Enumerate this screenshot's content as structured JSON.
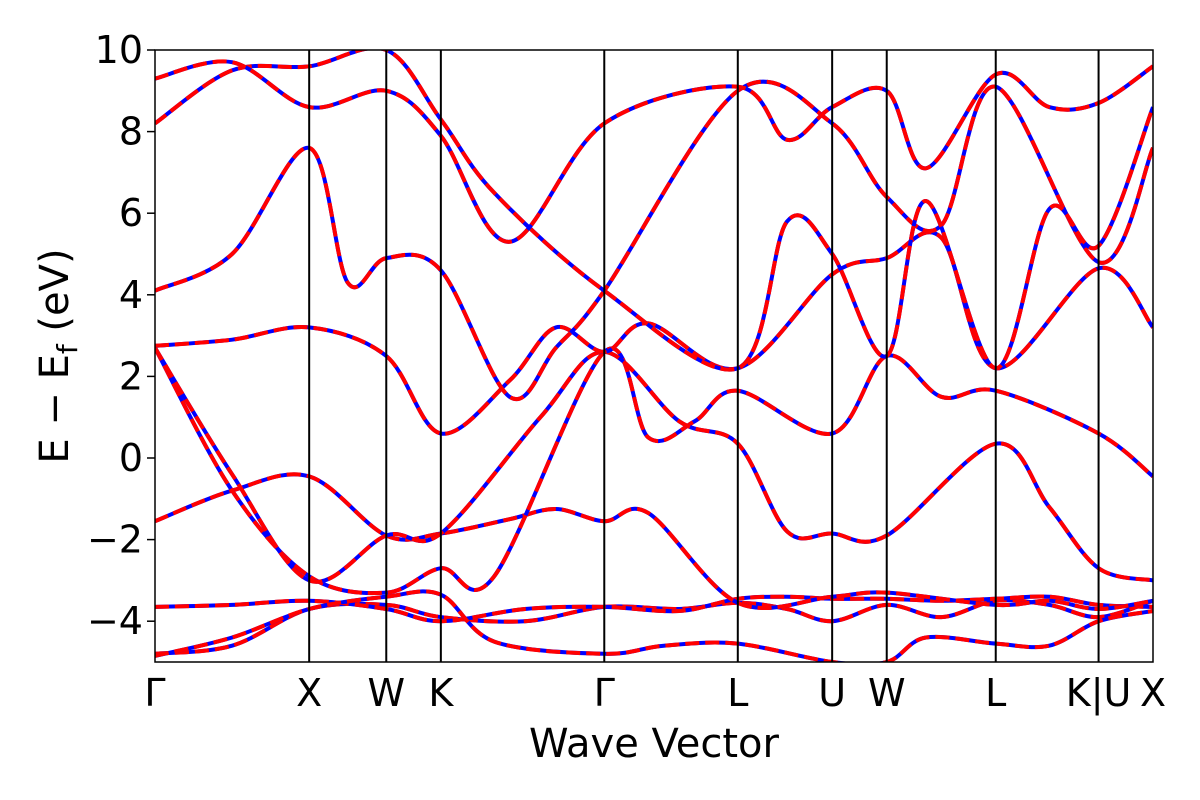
{
  "chart_data": {
    "type": "line",
    "title": "",
    "xlabel": "Wave Vector",
    "ylabel": "E − E",
    "ylabel_subscript": "f",
    "ylabel_unit": " (eV)",
    "ylim": [
      -5,
      10
    ],
    "yticks": [
      -4,
      -2,
      0,
      2,
      4,
      6,
      8,
      10
    ],
    "ytick_labels": [
      "−4",
      "−2",
      "0",
      "2",
      "4",
      "6",
      "8",
      "10"
    ],
    "xlim": [
      0,
      6.473
    ],
    "high_symmetry_points": [
      {
        "label": "Γ",
        "x": 0
      },
      {
        "label": "X",
        "x": 1.0
      },
      {
        "label": "W",
        "x": 1.5
      },
      {
        "label": "K",
        "x": 1.854
      },
      {
        "label": "Γ",
        "x": 2.914
      },
      {
        "label": "L",
        "x": 3.78
      },
      {
        "label": "U",
        "x": 4.392
      },
      {
        "label": "W",
        "x": 4.746
      },
      {
        "label": "L",
        "x": 5.453
      },
      {
        "label": "K|U",
        "x": 6.12
      },
      {
        "label": "X",
        "x": 6.473
      }
    ],
    "grid": false,
    "legend": "none",
    "colors": {
      "series_a": "#ff0000",
      "series_b": "#0000ff",
      "vlines": "#000000"
    },
    "series": [
      {
        "values": [
          [
            0,
            -4.8
          ],
          [
            0.5,
            -4.6
          ],
          [
            1.0,
            -3.7
          ],
          [
            1.5,
            -3.6
          ],
          [
            1.854,
            -3.9
          ],
          [
            2.4,
            -4.0
          ],
          [
            2.914,
            -3.65
          ],
          [
            3.4,
            -3.7
          ],
          [
            3.78,
            -3.55
          ],
          [
            4.1,
            -3.7
          ],
          [
            4.392,
            -4.0
          ],
          [
            4.746,
            -3.6
          ],
          [
            5.1,
            -3.9
          ],
          [
            5.453,
            -3.5
          ],
          [
            5.8,
            -3.6
          ],
          [
            6.12,
            -3.9
          ],
          [
            6.473,
            -3.5
          ]
        ]
      },
      {
        "values": [
          [
            0,
            -3.65
          ],
          [
            0.5,
            -3.6
          ],
          [
            1.0,
            -3.5
          ],
          [
            1.5,
            -3.7
          ],
          [
            1.854,
            -4.0
          ],
          [
            2.4,
            -3.7
          ],
          [
            2.914,
            -3.65
          ],
          [
            3.4,
            -3.75
          ],
          [
            3.78,
            -3.45
          ],
          [
            4.1,
            -3.4
          ],
          [
            4.392,
            -3.45
          ],
          [
            4.746,
            -3.45
          ],
          [
            5.1,
            -3.5
          ],
          [
            5.453,
            -3.45
          ],
          [
            5.8,
            -3.4
          ],
          [
            6.12,
            -3.6
          ],
          [
            6.473,
            -3.65
          ]
        ]
      },
      {
        "values": [
          [
            0,
            -4.85
          ],
          [
            0.5,
            -4.4
          ],
          [
            1.0,
            -3.7
          ],
          [
            1.5,
            -3.4
          ],
          [
            1.854,
            -3.35
          ],
          [
            2.2,
            -4.5
          ],
          [
            2.914,
            -4.8
          ],
          [
            3.3,
            -4.6
          ],
          [
            3.78,
            -4.55
          ],
          [
            4.392,
            -5.0
          ],
          [
            4.746,
            -5.0
          ],
          [
            5.0,
            -4.4
          ],
          [
            5.453,
            -4.55
          ],
          [
            5.8,
            -4.6
          ],
          [
            6.12,
            -4.0
          ],
          [
            6.473,
            -3.75
          ]
        ]
      },
      {
        "values": [
          [
            0,
            -1.55
          ],
          [
            0.5,
            -0.8
          ],
          [
            1.0,
            -0.45
          ],
          [
            1.5,
            -1.9
          ],
          [
            1.854,
            -1.85
          ],
          [
            2.3,
            -1.5
          ],
          [
            2.6,
            -1.25
          ],
          [
            2.914,
            -1.55
          ],
          [
            3.2,
            -1.35
          ],
          [
            3.78,
            -3.55
          ],
          [
            4.392,
            -3.4
          ],
          [
            4.746,
            -3.3
          ],
          [
            5.453,
            -3.6
          ],
          [
            5.8,
            -3.5
          ],
          [
            6.12,
            -3.7
          ],
          [
            6.473,
            -3.5
          ]
        ]
      },
      {
        "values": [
          [
            0,
            2.7
          ],
          [
            0.5,
            -0.8
          ],
          [
            1.0,
            -2.9
          ],
          [
            1.5,
            -3.3
          ],
          [
            1.854,
            -2.7
          ],
          [
            2.2,
            -2.9
          ],
          [
            2.914,
            2.6
          ],
          [
            3.2,
            0.5
          ],
          [
            3.5,
            0.9
          ],
          [
            3.78,
            1.65
          ],
          [
            4.392,
            0.6
          ],
          [
            4.746,
            2.5
          ],
          [
            5.1,
            1.5
          ],
          [
            5.453,
            1.65
          ],
          [
            6.12,
            0.6
          ],
          [
            6.473,
            -0.45
          ]
        ]
      },
      {
        "values": [
          [
            0,
            2.7
          ],
          [
            0.5,
            -0.4
          ],
          [
            1.0,
            -3.0
          ],
          [
            1.5,
            -1.9
          ],
          [
            1.854,
            -1.85
          ],
          [
            2.5,
            1.0
          ],
          [
            2.914,
            2.6
          ],
          [
            3.4,
            0.9
          ],
          [
            3.78,
            0.35
          ],
          [
            4.1,
            -1.8
          ],
          [
            4.392,
            -1.85
          ],
          [
            4.746,
            -1.9
          ],
          [
            5.453,
            0.35
          ],
          [
            5.8,
            -1.2
          ],
          [
            6.12,
            -2.7
          ],
          [
            6.473,
            -3.0
          ]
        ]
      },
      {
        "values": [
          [
            0,
            2.75
          ],
          [
            0.5,
            2.9
          ],
          [
            1.0,
            3.2
          ],
          [
            1.5,
            2.5
          ],
          [
            1.854,
            0.6
          ],
          [
            2.3,
            1.9
          ],
          [
            2.6,
            3.2
          ],
          [
            2.914,
            2.6
          ],
          [
            3.2,
            3.3
          ],
          [
            3.78,
            2.2
          ],
          [
            4.392,
            4.5
          ],
          [
            4.746,
            4.9
          ],
          [
            5.1,
            5.4
          ],
          [
            5.453,
            2.2
          ],
          [
            6.12,
            4.65
          ],
          [
            6.473,
            3.2
          ]
        ]
      },
      {
        "values": [
          [
            0,
            4.1
          ],
          [
            0.5,
            5.0
          ],
          [
            1.0,
            7.6
          ],
          [
            1.25,
            4.3
          ],
          [
            1.5,
            4.9
          ],
          [
            1.854,
            4.6
          ],
          [
            2.3,
            1.5
          ],
          [
            2.6,
            2.7
          ],
          [
            2.914,
            4.1
          ],
          [
            3.78,
            9.0
          ],
          [
            4.392,
            8.2
          ],
          [
            4.746,
            6.4
          ],
          [
            5.1,
            5.7
          ],
          [
            5.453,
            9.1
          ],
          [
            6.12,
            4.8
          ],
          [
            6.473,
            7.6
          ]
        ]
      },
      {
        "values": [
          [
            0,
            8.2
          ],
          [
            0.5,
            9.5
          ],
          [
            1.0,
            9.6
          ],
          [
            1.5,
            10.0
          ],
          [
            1.854,
            8.3
          ],
          [
            2.2,
            6.5
          ],
          [
            2.914,
            4.1
          ],
          [
            3.78,
            2.2
          ],
          [
            4.1,
            5.8
          ],
          [
            4.392,
            5.0
          ],
          [
            4.746,
            2.5
          ],
          [
            5.0,
            6.3
          ],
          [
            5.453,
            2.2
          ],
          [
            5.8,
            6.1
          ],
          [
            6.12,
            5.2
          ],
          [
            6.473,
            8.6
          ]
        ]
      },
      {
        "values": [
          [
            0,
            9.3
          ],
          [
            0.5,
            9.7
          ],
          [
            1.0,
            8.6
          ],
          [
            1.5,
            9.0
          ],
          [
            1.854,
            7.9
          ],
          [
            2.3,
            5.3
          ],
          [
            2.914,
            8.2
          ],
          [
            3.78,
            9.1
          ],
          [
            4.1,
            7.8
          ],
          [
            4.392,
            8.6
          ],
          [
            4.746,
            9.0
          ],
          [
            5.0,
            7.1
          ],
          [
            5.453,
            9.4
          ],
          [
            5.8,
            8.6
          ],
          [
            6.12,
            8.7
          ],
          [
            6.473,
            9.6
          ]
        ]
      }
    ]
  }
}
